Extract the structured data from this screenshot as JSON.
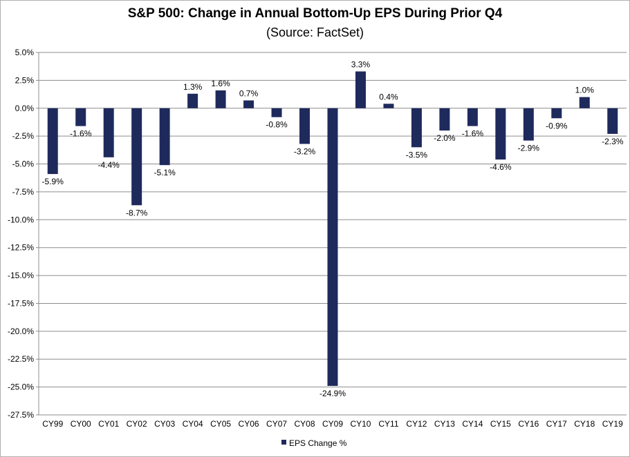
{
  "chart_data": {
    "type": "bar",
    "title": "S&P 500: Change in Annual Bottom-Up EPS During Prior Q4",
    "subtitle": "(Source: FactSet)",
    "categories": [
      "CY99",
      "CY00",
      "CY01",
      "CY02",
      "CY03",
      "CY04",
      "CY05",
      "CY06",
      "CY07",
      "CY08",
      "CY09",
      "CY10",
      "CY11",
      "CY12",
      "CY13",
      "CY14",
      "CY15",
      "CY16",
      "CY17",
      "CY18",
      "CY19"
    ],
    "series": [
      {
        "name": "EPS Change %",
        "color": "#1f2a5c",
        "values": [
          -5.9,
          -1.6,
          -4.4,
          -8.7,
          -5.1,
          1.3,
          1.6,
          0.7,
          -0.8,
          -3.2,
          -24.9,
          3.3,
          0.4,
          -3.5,
          -2.0,
          -1.6,
          -4.6,
          -2.9,
          -0.9,
          1.0,
          -2.3
        ],
        "labels": [
          "-5.9%",
          "-1.6%",
          "-4.4%",
          "-8.7%",
          "-5.1%",
          "1.3%",
          "1.6%",
          "0.7%",
          "-0.8%",
          "-3.2%",
          "-24.9%",
          "3.3%",
          "0.4%",
          "-3.5%",
          "-2.0%",
          "-1.6%",
          "-4.6%",
          "-2.9%",
          "-0.9%",
          "1.0%",
          "-2.3%"
        ]
      }
    ],
    "ylim": [
      -27.5,
      5.0
    ],
    "yticks": [
      5.0,
      2.5,
      0.0,
      -2.5,
      -5.0,
      -7.5,
      -10.0,
      -12.5,
      -15.0,
      -17.5,
      -20.0,
      -22.5,
      -25.0,
      -27.5
    ],
    "ytick_labels": [
      "5.0%",
      "2.5%",
      "0.0%",
      "-2.5%",
      "-5.0%",
      "-7.5%",
      "-10.0%",
      "-12.5%",
      "-15.0%",
      "-17.5%",
      "-20.0%",
      "-22.5%",
      "-25.0%",
      "-27.5%"
    ],
    "grid": true,
    "legend_position": "bottom"
  }
}
